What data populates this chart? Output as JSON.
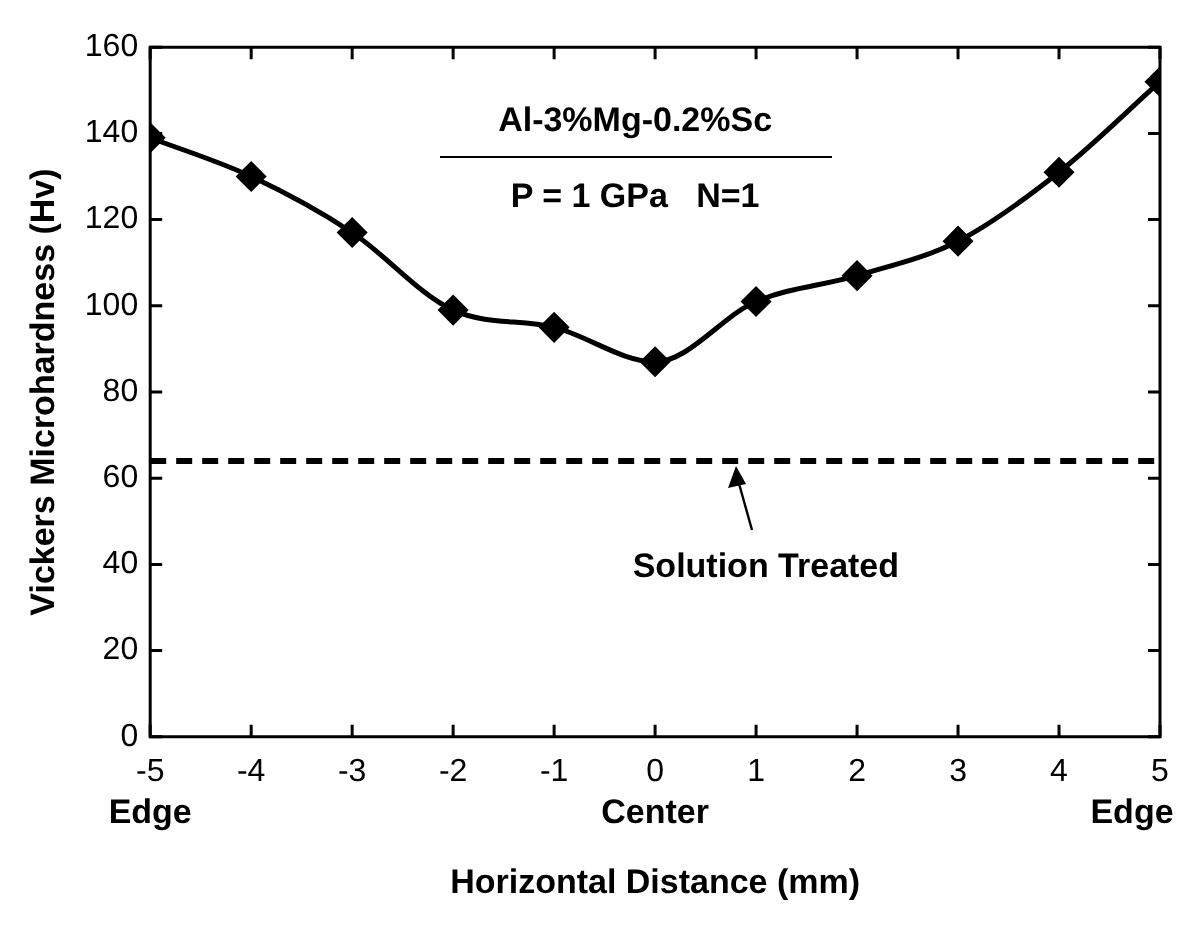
{
  "chart_data": {
    "type": "line",
    "title": "Al-3%Mg-0.2%Sc",
    "subtitle": "P = 1 GPa   N=1",
    "xlabel": "Horizontal Distance (mm)",
    "ylabel": "Vickers Microhardness (Hv)",
    "x": [
      -5,
      -4,
      -3,
      -2,
      -1,
      0,
      1,
      2,
      3,
      4,
      5
    ],
    "series": [
      {
        "color": "#000000",
        "values": [
          139,
          130,
          117,
          99,
          95,
          87,
          101,
          107,
          115,
          131,
          152
        ]
      }
    ],
    "xlim": [
      -5,
      5
    ],
    "xticks": [
      -5,
      -4,
      -3,
      -2,
      -1,
      0,
      1,
      2,
      3,
      4,
      5
    ],
    "ylim": [
      0,
      160
    ],
    "yticks": [
      0,
      20,
      40,
      60,
      80,
      100,
      120,
      140,
      160
    ],
    "ref_lines": [
      {
        "axis": "y",
        "value": 64,
        "label": "Solution Treated",
        "color": "#000000",
        "line_style": "dashed"
      }
    ],
    "annotations": [
      "Edge",
      "Center",
      "Edge"
    ],
    "marker": "diamond",
    "line_style": "solid",
    "grid": false
  }
}
